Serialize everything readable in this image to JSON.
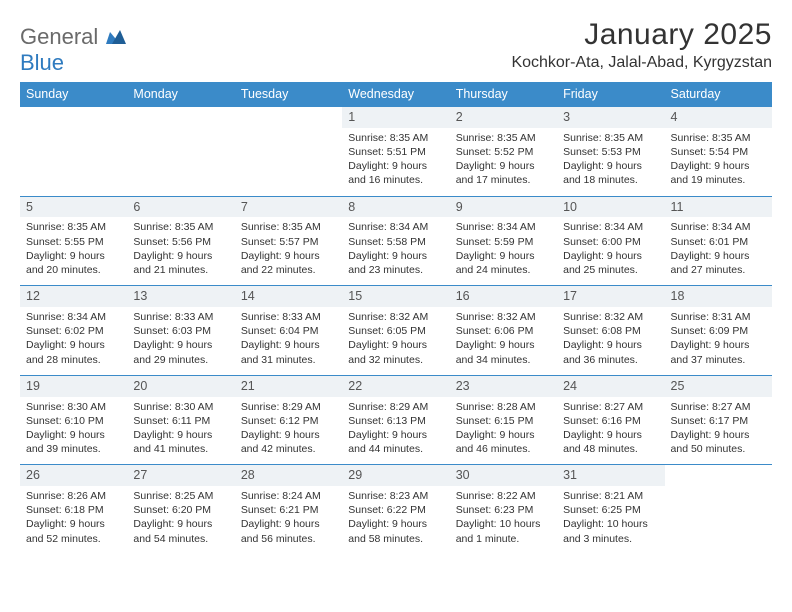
{
  "logo": {
    "part1": "General",
    "part2": "Blue"
  },
  "title": "January 2025",
  "location": "Kochkor-Ata, Jalal-Abad, Kyrgyzstan",
  "colors": {
    "header_bg": "#3b8bc9",
    "header_text": "#ffffff",
    "daynum_bg": "#eef2f5",
    "border": "#3b8bc9",
    "logo_gray": "#6a6a6a",
    "logo_blue": "#2f7bbf"
  },
  "day_headers": [
    "Sunday",
    "Monday",
    "Tuesday",
    "Wednesday",
    "Thursday",
    "Friday",
    "Saturday"
  ],
  "weeks": [
    [
      {
        "n": "",
        "sr": "",
        "ss": "",
        "d1": "",
        "d2": ""
      },
      {
        "n": "",
        "sr": "",
        "ss": "",
        "d1": "",
        "d2": ""
      },
      {
        "n": "",
        "sr": "",
        "ss": "",
        "d1": "",
        "d2": ""
      },
      {
        "n": "1",
        "sr": "Sunrise: 8:35 AM",
        "ss": "Sunset: 5:51 PM",
        "d1": "Daylight: 9 hours",
        "d2": "and 16 minutes."
      },
      {
        "n": "2",
        "sr": "Sunrise: 8:35 AM",
        "ss": "Sunset: 5:52 PM",
        "d1": "Daylight: 9 hours",
        "d2": "and 17 minutes."
      },
      {
        "n": "3",
        "sr": "Sunrise: 8:35 AM",
        "ss": "Sunset: 5:53 PM",
        "d1": "Daylight: 9 hours",
        "d2": "and 18 minutes."
      },
      {
        "n": "4",
        "sr": "Sunrise: 8:35 AM",
        "ss": "Sunset: 5:54 PM",
        "d1": "Daylight: 9 hours",
        "d2": "and 19 minutes."
      }
    ],
    [
      {
        "n": "5",
        "sr": "Sunrise: 8:35 AM",
        "ss": "Sunset: 5:55 PM",
        "d1": "Daylight: 9 hours",
        "d2": "and 20 minutes."
      },
      {
        "n": "6",
        "sr": "Sunrise: 8:35 AM",
        "ss": "Sunset: 5:56 PM",
        "d1": "Daylight: 9 hours",
        "d2": "and 21 minutes."
      },
      {
        "n": "7",
        "sr": "Sunrise: 8:35 AM",
        "ss": "Sunset: 5:57 PM",
        "d1": "Daylight: 9 hours",
        "d2": "and 22 minutes."
      },
      {
        "n": "8",
        "sr": "Sunrise: 8:34 AM",
        "ss": "Sunset: 5:58 PM",
        "d1": "Daylight: 9 hours",
        "d2": "and 23 minutes."
      },
      {
        "n": "9",
        "sr": "Sunrise: 8:34 AM",
        "ss": "Sunset: 5:59 PM",
        "d1": "Daylight: 9 hours",
        "d2": "and 24 minutes."
      },
      {
        "n": "10",
        "sr": "Sunrise: 8:34 AM",
        "ss": "Sunset: 6:00 PM",
        "d1": "Daylight: 9 hours",
        "d2": "and 25 minutes."
      },
      {
        "n": "11",
        "sr": "Sunrise: 8:34 AM",
        "ss": "Sunset: 6:01 PM",
        "d1": "Daylight: 9 hours",
        "d2": "and 27 minutes."
      }
    ],
    [
      {
        "n": "12",
        "sr": "Sunrise: 8:34 AM",
        "ss": "Sunset: 6:02 PM",
        "d1": "Daylight: 9 hours",
        "d2": "and 28 minutes."
      },
      {
        "n": "13",
        "sr": "Sunrise: 8:33 AM",
        "ss": "Sunset: 6:03 PM",
        "d1": "Daylight: 9 hours",
        "d2": "and 29 minutes."
      },
      {
        "n": "14",
        "sr": "Sunrise: 8:33 AM",
        "ss": "Sunset: 6:04 PM",
        "d1": "Daylight: 9 hours",
        "d2": "and 31 minutes."
      },
      {
        "n": "15",
        "sr": "Sunrise: 8:32 AM",
        "ss": "Sunset: 6:05 PM",
        "d1": "Daylight: 9 hours",
        "d2": "and 32 minutes."
      },
      {
        "n": "16",
        "sr": "Sunrise: 8:32 AM",
        "ss": "Sunset: 6:06 PM",
        "d1": "Daylight: 9 hours",
        "d2": "and 34 minutes."
      },
      {
        "n": "17",
        "sr": "Sunrise: 8:32 AM",
        "ss": "Sunset: 6:08 PM",
        "d1": "Daylight: 9 hours",
        "d2": "and 36 minutes."
      },
      {
        "n": "18",
        "sr": "Sunrise: 8:31 AM",
        "ss": "Sunset: 6:09 PM",
        "d1": "Daylight: 9 hours",
        "d2": "and 37 minutes."
      }
    ],
    [
      {
        "n": "19",
        "sr": "Sunrise: 8:30 AM",
        "ss": "Sunset: 6:10 PM",
        "d1": "Daylight: 9 hours",
        "d2": "and 39 minutes."
      },
      {
        "n": "20",
        "sr": "Sunrise: 8:30 AM",
        "ss": "Sunset: 6:11 PM",
        "d1": "Daylight: 9 hours",
        "d2": "and 41 minutes."
      },
      {
        "n": "21",
        "sr": "Sunrise: 8:29 AM",
        "ss": "Sunset: 6:12 PM",
        "d1": "Daylight: 9 hours",
        "d2": "and 42 minutes."
      },
      {
        "n": "22",
        "sr": "Sunrise: 8:29 AM",
        "ss": "Sunset: 6:13 PM",
        "d1": "Daylight: 9 hours",
        "d2": "and 44 minutes."
      },
      {
        "n": "23",
        "sr": "Sunrise: 8:28 AM",
        "ss": "Sunset: 6:15 PM",
        "d1": "Daylight: 9 hours",
        "d2": "and 46 minutes."
      },
      {
        "n": "24",
        "sr": "Sunrise: 8:27 AM",
        "ss": "Sunset: 6:16 PM",
        "d1": "Daylight: 9 hours",
        "d2": "and 48 minutes."
      },
      {
        "n": "25",
        "sr": "Sunrise: 8:27 AM",
        "ss": "Sunset: 6:17 PM",
        "d1": "Daylight: 9 hours",
        "d2": "and 50 minutes."
      }
    ],
    [
      {
        "n": "26",
        "sr": "Sunrise: 8:26 AM",
        "ss": "Sunset: 6:18 PM",
        "d1": "Daylight: 9 hours",
        "d2": "and 52 minutes."
      },
      {
        "n": "27",
        "sr": "Sunrise: 8:25 AM",
        "ss": "Sunset: 6:20 PM",
        "d1": "Daylight: 9 hours",
        "d2": "and 54 minutes."
      },
      {
        "n": "28",
        "sr": "Sunrise: 8:24 AM",
        "ss": "Sunset: 6:21 PM",
        "d1": "Daylight: 9 hours",
        "d2": "and 56 minutes."
      },
      {
        "n": "29",
        "sr": "Sunrise: 8:23 AM",
        "ss": "Sunset: 6:22 PM",
        "d1": "Daylight: 9 hours",
        "d2": "and 58 minutes."
      },
      {
        "n": "30",
        "sr": "Sunrise: 8:22 AM",
        "ss": "Sunset: 6:23 PM",
        "d1": "Daylight: 10 hours",
        "d2": "and 1 minute."
      },
      {
        "n": "31",
        "sr": "Sunrise: 8:21 AM",
        "ss": "Sunset: 6:25 PM",
        "d1": "Daylight: 10 hours",
        "d2": "and 3 minutes."
      },
      {
        "n": "",
        "sr": "",
        "ss": "",
        "d1": "",
        "d2": ""
      }
    ]
  ]
}
